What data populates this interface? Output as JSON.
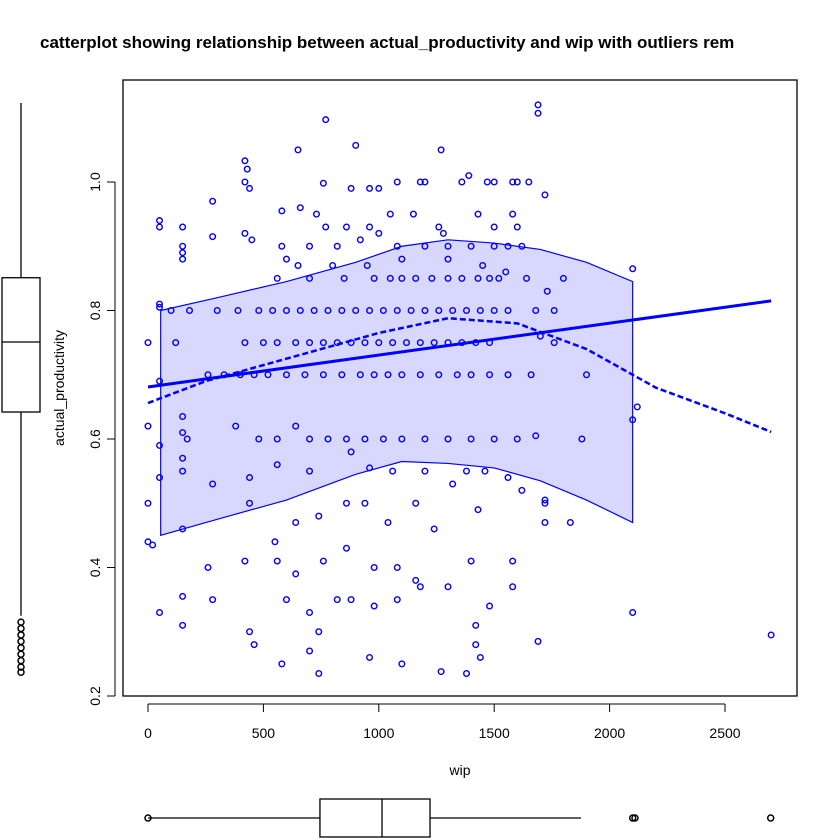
{
  "chart_data": {
    "type": "scatter",
    "title": "catterplot showing relationship between actual_productivity and wip with outliers rem",
    "xlabel": "wip",
    "ylabel": "actual_productivity",
    "xlim": [
      -100,
      2800
    ],
    "ylim": [
      0.2,
      1.14
    ],
    "x_ticks": [
      "0",
      "500",
      "1000",
      "1500",
      "2000",
      "2500"
    ],
    "y_ticks": [
      "0.2",
      "0.4",
      "0.6",
      "0.8",
      "1.0"
    ],
    "grid": false,
    "colors": {
      "points": "#0000ff",
      "band_fill": "#d8d8ff",
      "axes": "#000000"
    },
    "linear_fit": {
      "x": [
        0,
        2700
      ],
      "y": [
        0.681,
        0.815
      ]
    },
    "smooth_fit": {
      "x": [
        0,
        250,
        500,
        750,
        1000,
        1300,
        1600,
        1900,
        2200,
        2500,
        2700
      ],
      "y": [
        0.656,
        0.69,
        0.715,
        0.74,
        0.765,
        0.788,
        0.78,
        0.74,
        0.68,
        0.64,
        0.611
      ]
    },
    "band": {
      "x": [
        55,
        300,
        600,
        900,
        1100,
        1300,
        1500,
        1700,
        1900,
        2100
      ],
      "upper": [
        0.8,
        0.82,
        0.845,
        0.875,
        0.9,
        0.91,
        0.905,
        0.895,
        0.875,
        0.845
      ],
      "lower": [
        0.45,
        0.475,
        0.505,
        0.545,
        0.565,
        0.562,
        0.555,
        0.535,
        0.505,
        0.47
      ]
    },
    "x_boxplot": {
      "min": 0,
      "q1": 745,
      "median": 1014,
      "q3": 1222,
      "max": 1876,
      "outliers": [
        0,
        2100,
        2110,
        2698
      ]
    },
    "y_boxplot": {
      "min": 0.325,
      "q1": 0.642,
      "median": 0.751,
      "q3": 0.851,
      "max": 1.123,
      "outliers": [
        0.237,
        0.245,
        0.255,
        0.265,
        0.275,
        0.285,
        0.295,
        0.305,
        0.315
      ]
    },
    "points": [
      [
        1690,
        1.12
      ],
      [
        1690,
        1.107
      ],
      [
        770,
        1.097
      ],
      [
        900,
        1.057
      ],
      [
        650,
        1.05
      ],
      [
        1270,
        1.05
      ],
      [
        420,
        1.033
      ],
      [
        430,
        1.02
      ],
      [
        420,
        1.0
      ],
      [
        440,
        0.99
      ],
      [
        760,
        0.998
      ],
      [
        880,
        0.99
      ],
      [
        960,
        0.99
      ],
      [
        1000,
        0.99
      ],
      [
        1080,
        1.0
      ],
      [
        1180,
        1.0
      ],
      [
        1200,
        1.0
      ],
      [
        1360,
        1.0
      ],
      [
        1390,
        1.01
      ],
      [
        1470,
        1.0
      ],
      [
        1500,
        1.0
      ],
      [
        1580,
        1.0
      ],
      [
        1600,
        1.0
      ],
      [
        1650,
        1.0
      ],
      [
        1720,
        0.98
      ],
      [
        50,
        0.94
      ],
      [
        50,
        0.93
      ],
      [
        150,
        0.93
      ],
      [
        150,
        0.9
      ],
      [
        150,
        0.89
      ],
      [
        150,
        0.88
      ],
      [
        280,
        0.97
      ],
      [
        280,
        0.915
      ],
      [
        420,
        0.92
      ],
      [
        450,
        0.91
      ],
      [
        580,
        0.955
      ],
      [
        660,
        0.96
      ],
      [
        730,
        0.95
      ],
      [
        770,
        0.93
      ],
      [
        860,
        0.93
      ],
      [
        960,
        0.93
      ],
      [
        1000,
        0.92
      ],
      [
        1050,
        0.95
      ],
      [
        1150,
        0.95
      ],
      [
        1260,
        0.93
      ],
      [
        1280,
        0.92
      ],
      [
        1430,
        0.95
      ],
      [
        1500,
        0.93
      ],
      [
        1580,
        0.95
      ],
      [
        1600,
        0.93
      ],
      [
        580,
        0.9
      ],
      [
        700,
        0.9
      ],
      [
        820,
        0.9
      ],
      [
        920,
        0.91
      ],
      [
        1080,
        0.9
      ],
      [
        1200,
        0.9
      ],
      [
        1300,
        0.9
      ],
      [
        1400,
        0.9
      ],
      [
        1500,
        0.9
      ],
      [
        1560,
        0.9
      ],
      [
        1620,
        0.9
      ],
      [
        600,
        0.88
      ],
      [
        650,
        0.87
      ],
      [
        800,
        0.87
      ],
      [
        950,
        0.87
      ],
      [
        1100,
        0.88
      ],
      [
        1300,
        0.88
      ],
      [
        1450,
        0.87
      ],
      [
        1550,
        0.86
      ],
      [
        1800,
        0.85
      ],
      [
        560,
        0.85
      ],
      [
        700,
        0.85
      ],
      [
        850,
        0.85
      ],
      [
        980,
        0.85
      ],
      [
        1050,
        0.85
      ],
      [
        1100,
        0.85
      ],
      [
        1160,
        0.85
      ],
      [
        1230,
        0.85
      ],
      [
        1300,
        0.85
      ],
      [
        1360,
        0.85
      ],
      [
        1430,
        0.85
      ],
      [
        1480,
        0.85
      ],
      [
        1520,
        0.85
      ],
      [
        1640,
        0.85
      ],
      [
        50,
        0.805
      ],
      [
        50,
        0.81
      ],
      [
        100,
        0.8
      ],
      [
        180,
        0.8
      ],
      [
        300,
        0.8
      ],
      [
        390,
        0.8
      ],
      [
        480,
        0.8
      ],
      [
        540,
        0.8
      ],
      [
        600,
        0.8
      ],
      [
        660,
        0.8
      ],
      [
        720,
        0.8
      ],
      [
        780,
        0.8
      ],
      [
        840,
        0.8
      ],
      [
        900,
        0.8
      ],
      [
        960,
        0.8
      ],
      [
        1020,
        0.8
      ],
      [
        1080,
        0.8
      ],
      [
        1140,
        0.8
      ],
      [
        1200,
        0.8
      ],
      [
        1260,
        0.8
      ],
      [
        1320,
        0.8
      ],
      [
        1380,
        0.8
      ],
      [
        1440,
        0.8
      ],
      [
        1500,
        0.8
      ],
      [
        1560,
        0.8
      ],
      [
        1680,
        0.8
      ],
      [
        1760,
        0.8
      ],
      [
        1730,
        0.83
      ],
      [
        0,
        0.75
      ],
      [
        120,
        0.75
      ],
      [
        420,
        0.75
      ],
      [
        500,
        0.75
      ],
      [
        560,
        0.75
      ],
      [
        640,
        0.75
      ],
      [
        700,
        0.75
      ],
      [
        760,
        0.75
      ],
      [
        820,
        0.75
      ],
      [
        880,
        0.75
      ],
      [
        940,
        0.75
      ],
      [
        1000,
        0.75
      ],
      [
        1060,
        0.75
      ],
      [
        1120,
        0.75
      ],
      [
        1180,
        0.75
      ],
      [
        1240,
        0.75
      ],
      [
        1300,
        0.75
      ],
      [
        1360,
        0.75
      ],
      [
        1420,
        0.75
      ],
      [
        1480,
        0.75
      ],
      [
        1700,
        0.76
      ],
      [
        1760,
        0.75
      ],
      [
        50,
        0.69
      ],
      [
        260,
        0.7
      ],
      [
        330,
        0.7
      ],
      [
        400,
        0.7
      ],
      [
        460,
        0.7
      ],
      [
        520,
        0.7
      ],
      [
        600,
        0.7
      ],
      [
        680,
        0.7
      ],
      [
        760,
        0.7
      ],
      [
        840,
        0.7
      ],
      [
        920,
        0.7
      ],
      [
        980,
        0.7
      ],
      [
        1040,
        0.7
      ],
      [
        1100,
        0.7
      ],
      [
        1180,
        0.7
      ],
      [
        1260,
        0.7
      ],
      [
        1340,
        0.7
      ],
      [
        1400,
        0.7
      ],
      [
        1480,
        0.7
      ],
      [
        1560,
        0.7
      ],
      [
        1660,
        0.7
      ],
      [
        1900,
        0.7
      ],
      [
        0,
        0.62
      ],
      [
        150,
        0.635
      ],
      [
        150,
        0.61
      ],
      [
        170,
        0.6
      ],
      [
        380,
        0.62
      ],
      [
        480,
        0.6
      ],
      [
        560,
        0.6
      ],
      [
        640,
        0.62
      ],
      [
        700,
        0.6
      ],
      [
        780,
        0.6
      ],
      [
        860,
        0.6
      ],
      [
        940,
        0.6
      ],
      [
        1020,
        0.6
      ],
      [
        1100,
        0.6
      ],
      [
        1200,
        0.6
      ],
      [
        1300,
        0.6
      ],
      [
        1400,
        0.6
      ],
      [
        1500,
        0.6
      ],
      [
        1600,
        0.6
      ],
      [
        1680,
        0.605
      ],
      [
        1880,
        0.6
      ],
      [
        2100,
        0.63
      ],
      [
        2120,
        0.65
      ],
      [
        2100,
        0.865
      ],
      [
        50,
        0.59
      ],
      [
        50,
        0.54
      ],
      [
        150,
        0.57
      ],
      [
        150,
        0.55
      ],
      [
        0,
        0.5
      ],
      [
        440,
        0.54
      ],
      [
        560,
        0.56
      ],
      [
        700,
        0.55
      ],
      [
        880,
        0.58
      ],
      [
        960,
        0.555
      ],
      [
        1060,
        0.55
      ],
      [
        1200,
        0.55
      ],
      [
        1380,
        0.55
      ],
      [
        1460,
        0.55
      ],
      [
        1560,
        0.54
      ],
      [
        1620,
        0.52
      ],
      [
        150,
        0.46
      ],
      [
        0,
        0.44
      ],
      [
        20,
        0.435
      ],
      [
        280,
        0.53
      ],
      [
        440,
        0.5
      ],
      [
        550,
        0.44
      ],
      [
        640,
        0.47
      ],
      [
        740,
        0.48
      ],
      [
        860,
        0.5
      ],
      [
        940,
        0.5
      ],
      [
        1040,
        0.47
      ],
      [
        1160,
        0.5
      ],
      [
        1240,
        0.46
      ],
      [
        1320,
        0.53
      ],
      [
        1430,
        0.49
      ],
      [
        1720,
        0.5
      ],
      [
        1720,
        0.505
      ],
      [
        1830,
        0.47
      ],
      [
        1720,
        0.47
      ],
      [
        260,
        0.4
      ],
      [
        420,
        0.41
      ],
      [
        560,
        0.41
      ],
      [
        640,
        0.39
      ],
      [
        760,
        0.41
      ],
      [
        860,
        0.43
      ],
      [
        980,
        0.4
      ],
      [
        1080,
        0.4
      ],
      [
        1160,
        0.38
      ],
      [
        1300,
        0.37
      ],
      [
        1400,
        0.41
      ],
      [
        1580,
        0.41
      ],
      [
        50,
        0.33
      ],
      [
        150,
        0.355
      ],
      [
        150,
        0.31
      ],
      [
        280,
        0.35
      ],
      [
        440,
        0.3
      ],
      [
        600,
        0.35
      ],
      [
        700,
        0.33
      ],
      [
        740,
        0.3
      ],
      [
        820,
        0.35
      ],
      [
        880,
        0.35
      ],
      [
        980,
        0.34
      ],
      [
        1080,
        0.35
      ],
      [
        1180,
        0.37
      ],
      [
        1420,
        0.31
      ],
      [
        1480,
        0.34
      ],
      [
        1580,
        0.37
      ],
      [
        1690,
        0.285
      ],
      [
        2100,
        0.33
      ],
      [
        2700,
        0.295
      ],
      [
        460,
        0.28
      ],
      [
        580,
        0.25
      ],
      [
        700,
        0.27
      ],
      [
        740,
        0.235
      ],
      [
        960,
        0.26
      ],
      [
        1100,
        0.25
      ],
      [
        1270,
        0.238
      ],
      [
        1380,
        0.235
      ],
      [
        1440,
        0.26
      ],
      [
        1420,
        0.28
      ]
    ]
  }
}
